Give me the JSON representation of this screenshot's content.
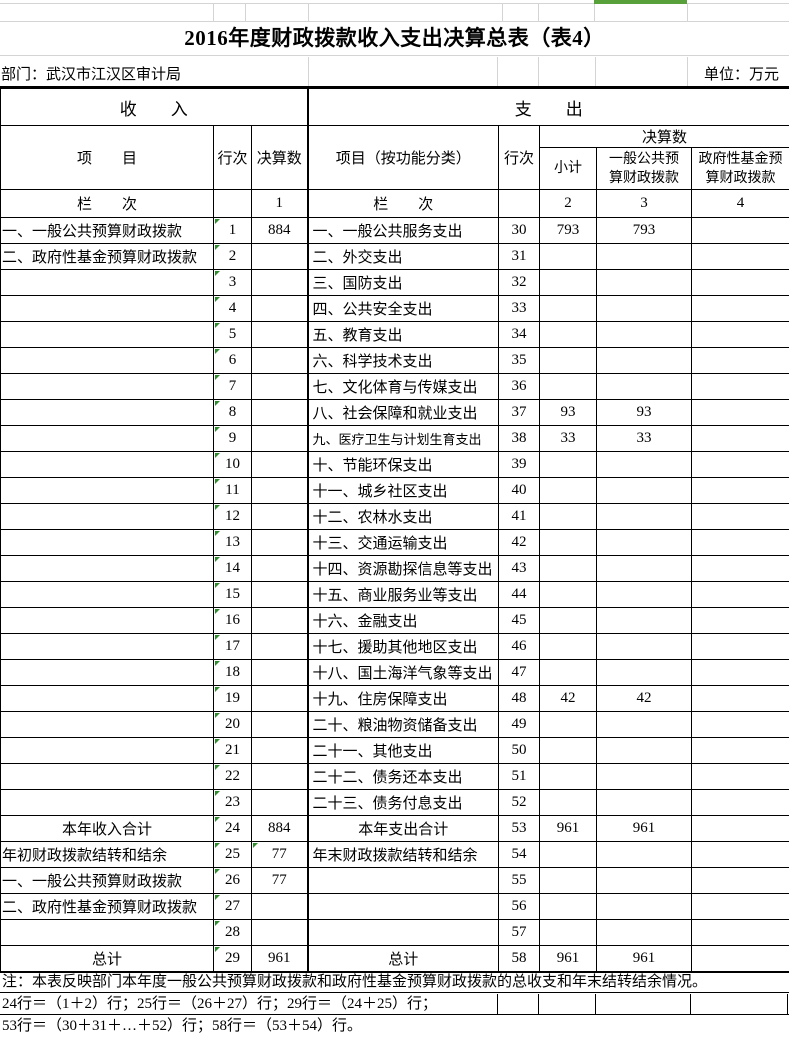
{
  "colors": {
    "selection_green": "#58a13a",
    "note_triangle_green": "#2e8b2e",
    "gridline_gray": "#d4d4d4"
  },
  "title": "2016年度财政拨款收入支出决算总表（表4）",
  "meta": {
    "department": "部门：武汉市江汉区审计局",
    "unit": "单位：万元"
  },
  "table": {
    "income_band": "收　　入",
    "expense_band": "支　　出",
    "headers": {
      "item": "项　　目",
      "row_no": "行次",
      "final_amount": "决算数",
      "item_func": "项目（按功能分类）",
      "row_no2": "行次",
      "final_amount2": "决算数",
      "subtotal": "小计",
      "general_budget": "一般公共预\n算财政拨款",
      "gov_fund": "政府性基金预\n算财政拨款"
    },
    "col_index": {
      "label": "栏　　次",
      "c1": "1",
      "label2": "栏　　次",
      "c2": "2",
      "c3": "3",
      "c4": "4"
    },
    "rows": [
      {
        "left": "一、一般公共预算财政拨款",
        "left_no": "1",
        "left_val": "884",
        "right": "一、一般公共服务支出",
        "right_no": "30",
        "subtotal": "793",
        "general": "793",
        "fund": ""
      },
      {
        "left": "二、政府性基金预算财政拨款",
        "left_no": "2",
        "left_val": "",
        "right": "二、外交支出",
        "right_no": "31",
        "subtotal": "",
        "general": "",
        "fund": ""
      },
      {
        "left": "",
        "left_no": "3",
        "left_val": "",
        "right": "三、国防支出",
        "right_no": "32",
        "subtotal": "",
        "general": "",
        "fund": ""
      },
      {
        "left": "",
        "left_no": "4",
        "left_val": "",
        "right": "四、公共安全支出",
        "right_no": "33",
        "subtotal": "",
        "general": "",
        "fund": ""
      },
      {
        "left": "",
        "left_no": "5",
        "left_val": "",
        "right": "五、教育支出",
        "right_no": "34",
        "subtotal": "",
        "general": "",
        "fund": ""
      },
      {
        "left": "",
        "left_no": "6",
        "left_val": "",
        "right": "六、科学技术支出",
        "right_no": "35",
        "subtotal": "",
        "general": "",
        "fund": ""
      },
      {
        "left": "",
        "left_no": "7",
        "left_val": "",
        "right": "七、文化体育与传媒支出",
        "right_no": "36",
        "subtotal": "",
        "general": "",
        "fund": ""
      },
      {
        "left": "",
        "left_no": "8",
        "left_val": "",
        "right": "八、社会保障和就业支出",
        "right_no": "37",
        "subtotal": "93",
        "general": "93",
        "fund": ""
      },
      {
        "left": "",
        "left_no": "9",
        "left_val": "",
        "right": "九、医疗卫生与计划生育支出",
        "right_no": "38",
        "subtotal": "33",
        "general": "33",
        "fund": "",
        "right_small": true
      },
      {
        "left": "",
        "left_no": "10",
        "left_val": "",
        "right": "十、节能环保支出",
        "right_no": "39",
        "subtotal": "",
        "general": "",
        "fund": ""
      },
      {
        "left": "",
        "left_no": "11",
        "left_val": "",
        "right": "十一、城乡社区支出",
        "right_no": "40",
        "subtotal": "",
        "general": "",
        "fund": ""
      },
      {
        "left": "",
        "left_no": "12",
        "left_val": "",
        "right": "十二、农林水支出",
        "right_no": "41",
        "subtotal": "",
        "general": "",
        "fund": ""
      },
      {
        "left": "",
        "left_no": "13",
        "left_val": "",
        "right": "十三、交通运输支出",
        "right_no": "42",
        "subtotal": "",
        "general": "",
        "fund": ""
      },
      {
        "left": "",
        "left_no": "14",
        "left_val": "",
        "right": "十四、资源勘探信息等支出",
        "right_no": "43",
        "subtotal": "",
        "general": "",
        "fund": ""
      },
      {
        "left": "",
        "left_no": "15",
        "left_val": "",
        "right": "十五、商业服务业等支出",
        "right_no": "44",
        "subtotal": "",
        "general": "",
        "fund": ""
      },
      {
        "left": "",
        "left_no": "16",
        "left_val": "",
        "right": "十六、金融支出",
        "right_no": "45",
        "subtotal": "",
        "general": "",
        "fund": ""
      },
      {
        "left": "",
        "left_no": "17",
        "left_val": "",
        "right": "十七、援助其他地区支出",
        "right_no": "46",
        "subtotal": "",
        "general": "",
        "fund": ""
      },
      {
        "left": "",
        "left_no": "18",
        "left_val": "",
        "right": "十八、国土海洋气象等支出",
        "right_no": "47",
        "subtotal": "",
        "general": "",
        "fund": ""
      },
      {
        "left": "",
        "left_no": "19",
        "left_val": "",
        "right": "十九、住房保障支出",
        "right_no": "48",
        "subtotal": "42",
        "general": "42",
        "fund": ""
      },
      {
        "left": "",
        "left_no": "20",
        "left_val": "",
        "right": "二十、粮油物资储备支出",
        "right_no": "49",
        "subtotal": "",
        "general": "",
        "fund": ""
      },
      {
        "left": "",
        "left_no": "21",
        "left_val": "",
        "right": "二十一、其他支出",
        "right_no": "50",
        "subtotal": "",
        "general": "",
        "fund": ""
      },
      {
        "left": "",
        "left_no": "22",
        "left_val": "",
        "right": "二十二、债务还本支出",
        "right_no": "51",
        "subtotal": "",
        "general": "",
        "fund": ""
      },
      {
        "left": "",
        "left_no": "23",
        "left_val": "",
        "right": "二十三、债务付息支出",
        "right_no": "52",
        "subtotal": "",
        "general": "",
        "fund": ""
      },
      {
        "left": "本年收入合计",
        "left_center": true,
        "left_no": "24",
        "left_val": "884",
        "right": "本年支出合计",
        "right_center": true,
        "right_no": "53",
        "subtotal": "961",
        "general": "961",
        "fund": ""
      },
      {
        "left": "年初财政拨款结转和结余",
        "left_no": "25",
        "left_val": "77",
        "val_note": true,
        "right": "年末财政拨款结转和结余",
        "right_no": "54",
        "subtotal": "",
        "general": "",
        "fund": ""
      },
      {
        "left": "一、一般公共预算财政拨款",
        "left_no": "26",
        "left_val": "77",
        "right": "",
        "right_no": "55",
        "subtotal": "",
        "general": "",
        "fund": ""
      },
      {
        "left": "二、政府性基金预算财政拨款",
        "left_no": "27",
        "left_val": "",
        "right": "",
        "right_no": "56",
        "subtotal": "",
        "general": "",
        "fund": ""
      },
      {
        "left": "",
        "left_no": "28",
        "left_val": "",
        "right": "",
        "right_no": "57",
        "subtotal": "",
        "general": "",
        "fund": ""
      },
      {
        "left": "总计",
        "left_center": true,
        "left_no": "29",
        "left_val": "961",
        "right": "总计",
        "right_center": true,
        "right_no": "58",
        "subtotal": "961",
        "general": "961",
        "fund": ""
      }
    ]
  },
  "notes": {
    "line1": "注：本表反映部门本年度一般公共预算财政拨款和政府性基金预算财政拨款的总收支和年末结转结余情况。",
    "line2": "24行＝（1＋2）行；25行＝（26＋27）行；29行＝（24＋25）行；",
    "line3": "53行＝（30＋31＋…＋52）行；58行＝（53＋54）行。"
  }
}
